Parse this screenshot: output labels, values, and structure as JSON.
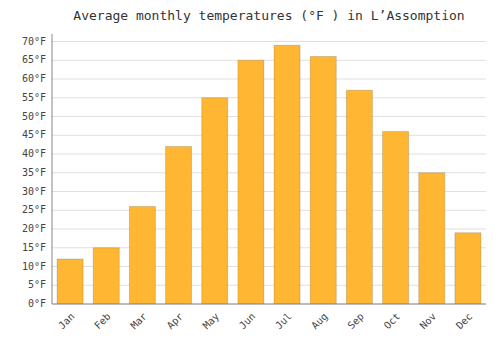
{
  "chart_data": {
    "type": "bar",
    "title": "Average monthly temperatures (°F ) in L’Assomption",
    "categories": [
      "Jan",
      "Feb",
      "Mar",
      "Apr",
      "May",
      "Jun",
      "Jul",
      "Aug",
      "Sep",
      "Oct",
      "Nov",
      "Dec"
    ],
    "values": [
      12,
      15,
      26,
      42,
      55,
      65,
      69,
      66,
      57,
      46,
      35,
      19
    ],
    "color": "#FFB733",
    "ylim": [
      0,
      72
    ],
    "yticks": [
      {
        "value": 0,
        "label": "0°F"
      },
      {
        "value": 5,
        "label": "5°F"
      },
      {
        "value": 10,
        "label": "10°F"
      },
      {
        "value": 15,
        "label": "15°F"
      },
      {
        "value": 20,
        "label": "20°F"
      },
      {
        "value": 25,
        "label": "25°F"
      },
      {
        "value": 30,
        "label": "30°F"
      },
      {
        "value": 35,
        "label": "35°F"
      },
      {
        "value": 40,
        "label": "40°F"
      },
      {
        "value": 45,
        "label": "45°F"
      },
      {
        "value": 50,
        "label": "50°F"
      },
      {
        "value": 55,
        "label": "55°F"
      },
      {
        "value": 60,
        "label": "60°F"
      },
      {
        "value": 65,
        "label": "65°F"
      },
      {
        "value": 70,
        "label": "70°F"
      }
    ],
    "grid": true
  }
}
